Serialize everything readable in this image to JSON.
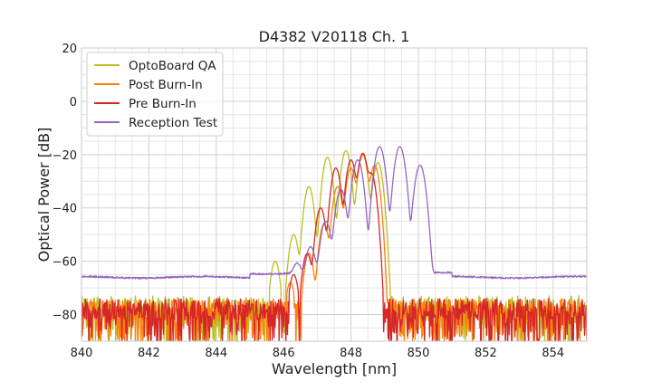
{
  "chart_data": {
    "type": "line",
    "title": "D4382 V20118 Ch. 1",
    "xlabel": "Wavelength [nm]",
    "ylabel": "Optical Power [dB]",
    "xlim": [
      840,
      855
    ],
    "ylim": [
      -90,
      20
    ],
    "xticks": [
      840,
      842,
      844,
      846,
      848,
      850,
      852,
      854
    ],
    "yticks": [
      -80,
      -60,
      -40,
      -20,
      0,
      20
    ],
    "ytick_labels": [
      "−80",
      "−60",
      "−40",
      "−20",
      "0",
      "20"
    ],
    "grid": true,
    "legend_position": "top-left",
    "series": [
      {
        "name": "OptoBoard QA",
        "color": "#bcbd22",
        "noise_floor_db": -80,
        "peaks": [
          {
            "wavelength": 845.75,
            "power": -60
          },
          {
            "wavelength": 846.3,
            "power": -50
          },
          {
            "wavelength": 846.75,
            "power": -32
          },
          {
            "wavelength": 847.3,
            "power": -21
          },
          {
            "wavelength": 847.85,
            "power": -18.5
          },
          {
            "wavelength": 848.35,
            "power": -20
          },
          {
            "wavelength": 848.8,
            "power": -23
          }
        ]
      },
      {
        "name": "Post Burn-In",
        "color": "#ff7f0e",
        "noise_floor_db": -81,
        "peaks": [
          {
            "wavelength": 846.2,
            "power": -68
          },
          {
            "wavelength": 846.75,
            "power": -57
          },
          {
            "wavelength": 847.2,
            "power": -46
          },
          {
            "wavelength": 847.6,
            "power": -32
          },
          {
            "wavelength": 848.0,
            "power": -25
          },
          {
            "wavelength": 848.35,
            "power": -20
          },
          {
            "wavelength": 848.7,
            "power": -24
          }
        ]
      },
      {
        "name": "Pre Burn-In",
        "color": "#d62728",
        "noise_floor_db": -81,
        "peaks": [
          {
            "wavelength": 846.3,
            "power": -65
          },
          {
            "wavelength": 846.7,
            "power": -57
          },
          {
            "wavelength": 847.1,
            "power": -40
          },
          {
            "wavelength": 847.55,
            "power": -25
          },
          {
            "wavelength": 848.0,
            "power": -22
          },
          {
            "wavelength": 848.35,
            "power": -19.5
          },
          {
            "wavelength": 848.6,
            "power": -27
          }
        ]
      },
      {
        "name": "Reception Test",
        "color": "#9467bd",
        "baseline_db": -66,
        "peaks": [
          {
            "wavelength": 846.4,
            "power": -63
          },
          {
            "wavelength": 846.8,
            "power": -55
          },
          {
            "wavelength": 847.25,
            "power": -45
          },
          {
            "wavelength": 847.7,
            "power": -33
          },
          {
            "wavelength": 848.2,
            "power": -22
          },
          {
            "wavelength": 848.85,
            "power": -17
          },
          {
            "wavelength": 849.45,
            "power": -17
          },
          {
            "wavelength": 850.05,
            "power": -24
          }
        ]
      }
    ]
  }
}
